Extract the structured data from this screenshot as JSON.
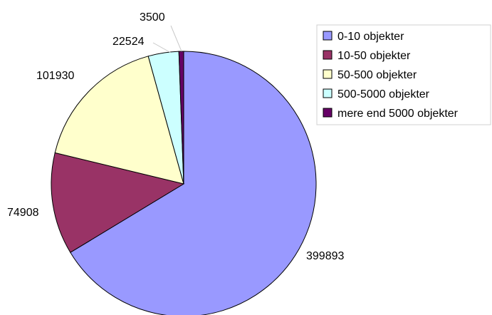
{
  "chart_data": {
    "type": "pie",
    "title": "",
    "start": "12 o'clock, clockwise",
    "legend_position": "right",
    "slices": [
      {
        "label": "0-10 objekter",
        "value": 399893,
        "color": "#9999ff"
      },
      {
        "label": "10-50 objekter",
        "value": 74908,
        "color": "#993366"
      },
      {
        "label": "50-500 objekter",
        "value": 101930,
        "color": "#ffffcc"
      },
      {
        "label": "500-5000 objekter",
        "value": 22524,
        "color": "#ccffff"
      },
      {
        "label": "mere end 5000 objekter",
        "value": 3500,
        "color": "#660066"
      }
    ],
    "data_labels": [
      "399893",
      "74908",
      "101930",
      "22524",
      "3500"
    ]
  }
}
